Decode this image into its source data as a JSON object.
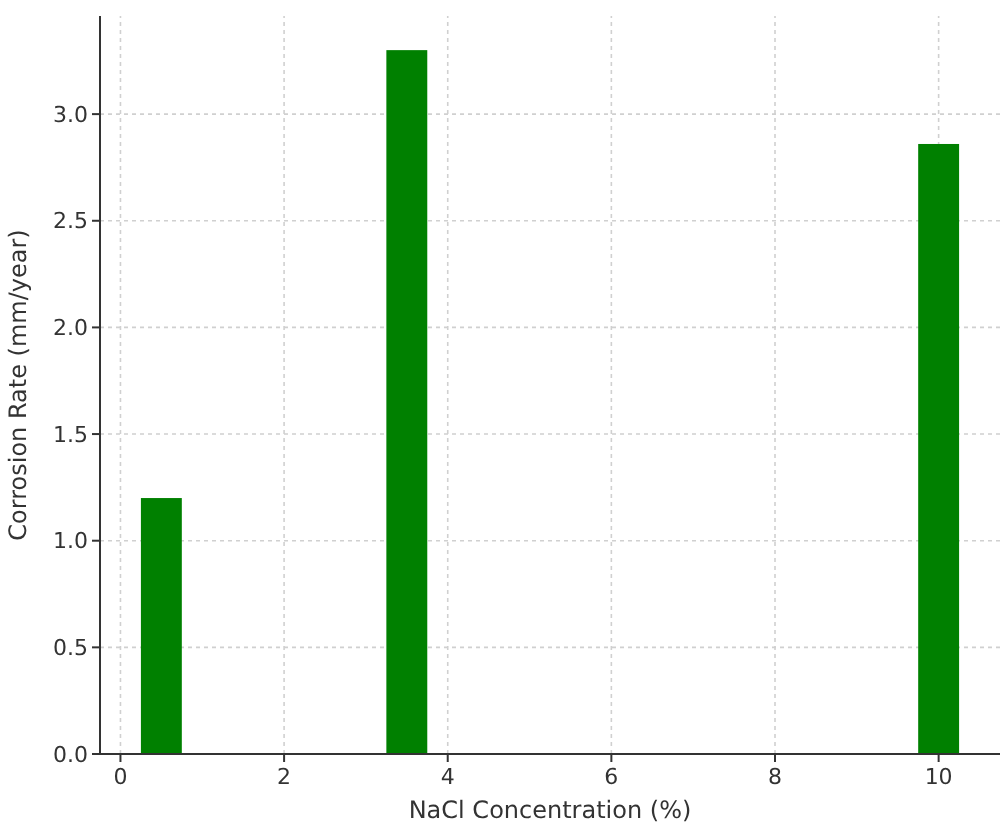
{
  "chart_data": {
    "type": "bar",
    "xlabel": "NaCl Concentration (%)",
    "ylabel": "Corrosion Rate (mm/year)",
    "x": [
      0.5,
      3.5,
      10
    ],
    "values": [
      1.2,
      3.3,
      2.86
    ],
    "color": "#008000",
    "xlim": [
      -0.25,
      10.75
    ],
    "xticks": [
      0,
      2,
      4,
      6,
      8,
      10
    ],
    "ylim": [
      0,
      3.46
    ],
    "yticks": [
      {
        "value": 0,
        "label": "0.0"
      },
      {
        "value": 0.5,
        "label": "0.5"
      },
      {
        "value": 1,
        "label": "1.0"
      },
      {
        "value": 1.5,
        "label": "1.5"
      },
      {
        "value": 2,
        "label": "2.0"
      },
      {
        "value": 2.5,
        "label": "2.5"
      },
      {
        "value": 3,
        "label": "3.0"
      }
    ],
    "grid": true
  }
}
